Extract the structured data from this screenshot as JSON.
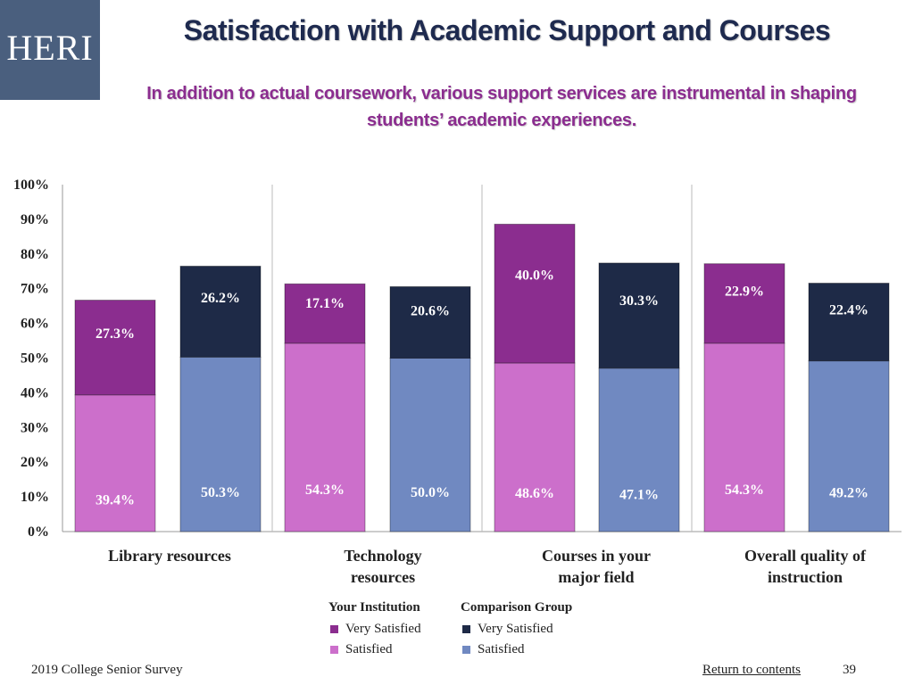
{
  "logo": "HERI",
  "title": "Satisfaction with Academic Support and Courses",
  "subtitle": "In addition to actual coursework, various support services are instrumental in shaping students’ academic experiences.",
  "colors": {
    "inst_very": "#8b2d8f",
    "inst_sat": "#cc6fcb",
    "comp_very": "#1e2a47",
    "comp_sat": "#7089c1"
  },
  "chart_data": {
    "type": "bar",
    "stacked": true,
    "ylim": [
      0,
      100
    ],
    "yticks": [
      "0%",
      "10%",
      "20%",
      "30%",
      "40%",
      "50%",
      "60%",
      "70%",
      "80%",
      "90%",
      "100%"
    ],
    "categories": [
      {
        "line1": "Library resources",
        "line2": ""
      },
      {
        "line1": "Technology",
        "line2": "resources"
      },
      {
        "line1": "Courses in your",
        "line2": "major field"
      },
      {
        "line1": "Overall quality of",
        "line2": "instruction"
      }
    ],
    "groups": [
      "Your Institution",
      "Comparison Group"
    ],
    "series": [
      {
        "name": "Satisfied",
        "group": "Your Institution",
        "values": [
          39.4,
          54.3,
          48.6,
          54.3
        ],
        "labels": [
          "39.4%",
          "54.3%",
          "48.6%",
          "54.3%"
        ]
      },
      {
        "name": "Very Satisfied",
        "group": "Your Institution",
        "values": [
          27.3,
          17.1,
          40.0,
          22.9
        ],
        "labels": [
          "27.3%",
          "17.1%",
          "40.0%",
          "22.9%"
        ]
      },
      {
        "name": "Satisfied",
        "group": "Comparison Group",
        "values": [
          50.3,
          50.0,
          47.1,
          49.2
        ],
        "labels": [
          "50.3%",
          "50.0%",
          "47.1%",
          "49.2%"
        ]
      },
      {
        "name": "Very Satisfied",
        "group": "Comparison Group",
        "values": [
          26.2,
          20.6,
          30.3,
          22.4
        ],
        "labels": [
          "26.2%",
          "20.6%",
          "30.3%",
          "22.4%"
        ]
      }
    ]
  },
  "legend": {
    "inst_head": "Your Institution",
    "comp_head": "Comparison Group",
    "very": "Very Satisfied",
    "sat": "Satisfied"
  },
  "footer": {
    "survey": "2019 College Senior Survey",
    "link": "Return to contents",
    "page": "39"
  }
}
